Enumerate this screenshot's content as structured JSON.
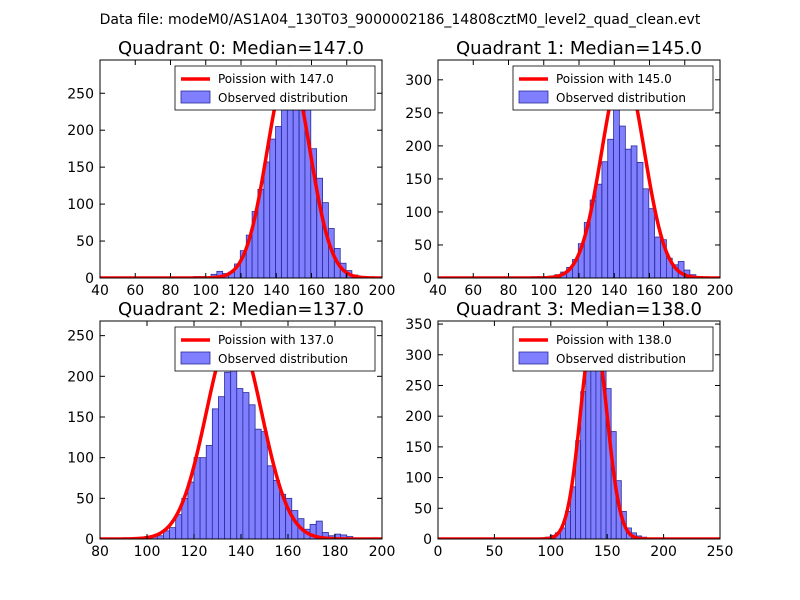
{
  "suptitle": "Data file: modeM0/AS1A04_130T03_9000002186_14808cztM0_level2_quad_clean.evt",
  "colors": {
    "bar_fill": "#7f7fff",
    "bar_edge": "#2b2b99",
    "curve": "#ff0000",
    "axis": "#000000"
  },
  "chart_data": [
    {
      "type": "bar",
      "title": "Quadrant 0: Median=147.0",
      "legend": [
        "Poission with 147.0",
        "Observed distribution"
      ],
      "legend_position": "top-right",
      "xlim": [
        40,
        200
      ],
      "ylim": [
        0,
        295
      ],
      "xticks": [
        40,
        60,
        80,
        100,
        120,
        140,
        160,
        180,
        200
      ],
      "yticks": [
        0,
        50,
        100,
        150,
        200,
        250
      ],
      "bin_width": 3.3,
      "bins": [
        [
          93,
          2
        ],
        [
          96.3,
          2
        ],
        [
          99.6,
          1
        ],
        [
          103,
          5
        ],
        [
          106.3,
          9
        ],
        [
          109.6,
          6
        ],
        [
          113,
          8
        ],
        [
          116.3,
          19
        ],
        [
          119.6,
          37
        ],
        [
          123,
          58
        ],
        [
          126.3,
          90
        ],
        [
          129.6,
          120
        ],
        [
          133,
          157
        ],
        [
          136.3,
          188
        ],
        [
          139.6,
          205
        ],
        [
          143,
          248
        ],
        [
          146.3,
          278
        ],
        [
          149.6,
          282
        ],
        [
          153,
          258
        ],
        [
          156.3,
          237
        ],
        [
          159.6,
          175
        ],
        [
          163,
          135
        ],
        [
          166.3,
          102
        ],
        [
          169.6,
          67
        ],
        [
          173,
          40
        ],
        [
          176.3,
          20
        ],
        [
          179.6,
          10
        ],
        [
          183,
          4
        ],
        [
          186.3,
          2
        ],
        [
          189.6,
          1
        ]
      ],
      "poisson_mean": 147.0,
      "poisson_peak": 285,
      "curve_x": [
        40,
        200
      ]
    },
    {
      "type": "bar",
      "title": "Quadrant 1: Median=145.0",
      "legend": [
        "Poission with 145.0",
        "Observed distribution"
      ],
      "legend_position": "top-right",
      "xlim": [
        40,
        200
      ],
      "ylim": [
        0,
        330
      ],
      "xticks": [
        40,
        60,
        80,
        100,
        120,
        140,
        160,
        180,
        200
      ],
      "yticks": [
        0,
        50,
        100,
        150,
        200,
        250,
        300
      ],
      "bin_width": 3.3,
      "bins": [
        [
          93,
          2
        ],
        [
          96.3,
          2
        ],
        [
          103,
          3
        ],
        [
          106.3,
          5
        ],
        [
          109.6,
          9
        ],
        [
          113,
          16
        ],
        [
          116.3,
          28
        ],
        [
          119.6,
          52
        ],
        [
          123,
          84
        ],
        [
          126.3,
          118
        ],
        [
          129.6,
          142
        ],
        [
          133,
          176
        ],
        [
          136.3,
          210
        ],
        [
          139.6,
          265
        ],
        [
          143,
          230
        ],
        [
          146.3,
          195
        ],
        [
          149.6,
          200
        ],
        [
          153,
          175
        ],
        [
          156.3,
          135
        ],
        [
          159.6,
          105
        ],
        [
          163,
          62
        ],
        [
          166.3,
          58
        ],
        [
          169.6,
          30
        ],
        [
          173,
          20
        ],
        [
          176.3,
          25
        ],
        [
          179.6,
          12
        ],
        [
          183,
          5
        ],
        [
          186.3,
          2
        ]
      ],
      "poisson_mean": 145.0,
      "poisson_peak": 318,
      "curve_x": [
        40,
        200
      ]
    },
    {
      "type": "bar",
      "title": "Quadrant 2: Median=137.0",
      "legend": [
        "Poission with 137.0",
        "Observed distribution"
      ],
      "legend_position": "top-right",
      "xlim": [
        80,
        200
      ],
      "ylim": [
        0,
        268
      ],
      "xticks": [
        80,
        100,
        120,
        140,
        160,
        180,
        200
      ],
      "yticks": [
        0,
        50,
        100,
        150,
        200,
        250
      ],
      "bin_width": 2.6,
      "bins": [
        [
          94,
          2
        ],
        [
          96.6,
          1
        ],
        [
          99.2,
          2
        ],
        [
          101.8,
          3
        ],
        [
          104.4,
          4
        ],
        [
          107,
          10
        ],
        [
          109.6,
          14
        ],
        [
          112.2,
          30
        ],
        [
          114.8,
          50
        ],
        [
          117.4,
          70
        ],
        [
          120,
          100
        ],
        [
          122.6,
          100
        ],
        [
          125.2,
          115
        ],
        [
          127.8,
          160
        ],
        [
          130.4,
          175
        ],
        [
          133,
          205
        ],
        [
          135.6,
          215
        ],
        [
          138.2,
          185
        ],
        [
          140.8,
          180
        ],
        [
          143.4,
          165
        ],
        [
          146,
          135
        ],
        [
          148.6,
          132
        ],
        [
          151.2,
          90
        ],
        [
          153.8,
          72
        ],
        [
          156.4,
          55
        ],
        [
          159,
          50
        ],
        [
          161.6,
          35
        ],
        [
          164.2,
          25
        ],
        [
          166.8,
          12
        ],
        [
          169.4,
          18
        ],
        [
          172,
          22
        ],
        [
          174.6,
          8
        ],
        [
          177.2,
          4
        ],
        [
          179.8,
          6
        ],
        [
          182.4,
          5
        ],
        [
          185,
          3
        ],
        [
          187.6,
          1
        ]
      ],
      "poisson_mean": 137.0,
      "poisson_peak": 258,
      "curve_x": [
        80,
        200
      ]
    },
    {
      "type": "bar",
      "title": "Quadrant 3: Median=138.0",
      "legend": [
        "Poission with 138.0",
        "Observed distribution"
      ],
      "legend_position": "top-right",
      "xlim": [
        0,
        250
      ],
      "ylim": [
        0,
        355
      ],
      "xticks": [
        0,
        50,
        100,
        150,
        200,
        250
      ],
      "yticks": [
        0,
        50,
        100,
        150,
        200,
        250,
        300,
        350
      ],
      "bin_width": 4.5,
      "bins": [
        [
          95,
          3
        ],
        [
          99.5,
          6
        ],
        [
          104,
          10
        ],
        [
          108.5,
          18
        ],
        [
          113,
          45
        ],
        [
          117.5,
          85
        ],
        [
          122,
          160
        ],
        [
          126.5,
          240
        ],
        [
          131,
          290
        ],
        [
          135.5,
          315
        ],
        [
          140,
          335
        ],
        [
          144.5,
          300
        ],
        [
          149,
          245
        ],
        [
          153.5,
          175
        ],
        [
          158,
          95
        ],
        [
          162.5,
          45
        ],
        [
          167,
          18
        ],
        [
          171.5,
          10
        ],
        [
          176,
          5
        ],
        [
          180.5,
          3
        ],
        [
          185,
          1
        ]
      ],
      "poisson_mean": 138.0,
      "poisson_peak": 338,
      "curve_x": [
        0,
        250
      ]
    }
  ]
}
